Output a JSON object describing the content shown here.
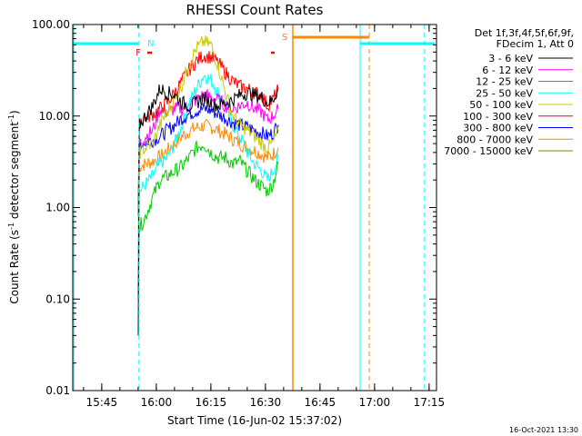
{
  "chart_data": {
    "type": "line",
    "title": "RHESSI Count Rates",
    "xlabel": "Start Time (16-Jun-02 15:37:02)",
    "ylabel_main": "Count Rate (s",
    "ylabel_exp": "-1",
    "ylabel_tail": " detector segment",
    "ylabel_exp2": "-1",
    "ylabel_close": ")",
    "yscale": "log",
    "ylim": [
      0.01,
      100
    ],
    "xlim_minutes": [
      0,
      100
    ],
    "x_ticks": [
      {
        "label": "15:45",
        "minute": 7.97
      },
      {
        "label": "16:00",
        "minute": 22.97
      },
      {
        "label": "16:15",
        "minute": 37.97
      },
      {
        "label": "16:30",
        "minute": 52.97
      },
      {
        "label": "16:45",
        "minute": 67.97
      },
      {
        "label": "17:00",
        "minute": 82.97
      },
      {
        "label": "17:15",
        "minute": 97.97
      }
    ],
    "y_ticks": [
      {
        "label": "100.00",
        "value": 100
      },
      {
        "label": "10.00",
        "value": 10
      },
      {
        "label": "1.00",
        "value": 1
      },
      {
        "label": "0.10",
        "value": 0.1
      },
      {
        "label": "0.01",
        "value": 0.01
      }
    ],
    "legend_header": [
      "Det 1f,3f,4f,5f,6f,9f,",
      "FDecim 1, Att 0"
    ],
    "series": [
      {
        "name": "3 - 6 keV",
        "color": "#000000",
        "points": [
          [
            18,
            0.04
          ],
          [
            18.3,
            8
          ],
          [
            20,
            10
          ],
          [
            22,
            13
          ],
          [
            24,
            20
          ],
          [
            26,
            18
          ],
          [
            28,
            17
          ],
          [
            30,
            14
          ],
          [
            32,
            13
          ],
          [
            34,
            14
          ],
          [
            36,
            16
          ],
          [
            38,
            14
          ],
          [
            40,
            13
          ],
          [
            42,
            14
          ],
          [
            44,
            15
          ],
          [
            46,
            17
          ],
          [
            48,
            18
          ],
          [
            50,
            17
          ],
          [
            52,
            16
          ],
          [
            53.5,
            14
          ],
          [
            55,
            15
          ],
          [
            56.5,
            20
          ]
        ]
      },
      {
        "name": "6 - 12 keV",
        "color": "#ff00ff",
        "points": [
          [
            18,
            0.1
          ],
          [
            18.3,
            5
          ],
          [
            20,
            6
          ],
          [
            22,
            7
          ],
          [
            24,
            12
          ],
          [
            26,
            11
          ],
          [
            28,
            12
          ],
          [
            30,
            12
          ],
          [
            32,
            13
          ],
          [
            34,
            15
          ],
          [
            36,
            17
          ],
          [
            38,
            16
          ],
          [
            40,
            15
          ],
          [
            42,
            13
          ],
          [
            44,
            12
          ],
          [
            46,
            13
          ],
          [
            48,
            14
          ],
          [
            50,
            12
          ],
          [
            52,
            11
          ],
          [
            53.5,
            9
          ],
          [
            55,
            10
          ],
          [
            56.5,
            12
          ]
        ]
      },
      {
        "name": "12 - 25 keV",
        "color": "#00cc00",
        "points": [
          [
            18,
            0.1
          ],
          [
            18.3,
            0.6
          ],
          [
            20,
            0.8
          ],
          [
            22,
            1.3
          ],
          [
            24,
            2
          ],
          [
            26,
            2.2
          ],
          [
            28,
            2.5
          ],
          [
            30,
            2.8
          ],
          [
            32,
            3.5
          ],
          [
            34,
            4.5
          ],
          [
            36,
            5
          ],
          [
            38,
            4
          ],
          [
            40,
            3.5
          ],
          [
            42,
            3.5
          ],
          [
            44,
            3
          ],
          [
            46,
            3.2
          ],
          [
            48,
            2.5
          ],
          [
            50,
            2
          ],
          [
            52,
            1.7
          ],
          [
            53.5,
            1.5
          ],
          [
            55,
            1.8
          ],
          [
            56.5,
            3
          ]
        ]
      },
      {
        "name": "25 - 50 keV",
        "color": "#00ffff",
        "points": [
          [
            18,
            0.1
          ],
          [
            18.3,
            1.5
          ],
          [
            20,
            1.8
          ],
          [
            22,
            2.2
          ],
          [
            24,
            3
          ],
          [
            26,
            3.5
          ],
          [
            28,
            5
          ],
          [
            30,
            8
          ],
          [
            32,
            14
          ],
          [
            34,
            20
          ],
          [
            36,
            28
          ],
          [
            38,
            25
          ],
          [
            40,
            18
          ],
          [
            42,
            13
          ],
          [
            44,
            8
          ],
          [
            46,
            6
          ],
          [
            48,
            4
          ],
          [
            50,
            3
          ],
          [
            52,
            2.5
          ],
          [
            53.5,
            2
          ],
          [
            55,
            2.5
          ],
          [
            56.5,
            3.5
          ]
        ]
      },
      {
        "name": "50 - 100 keV",
        "color": "#cccc00",
        "points": [
          [
            18,
            0.5
          ],
          [
            18.3,
            4
          ],
          [
            20,
            4.5
          ],
          [
            22,
            5
          ],
          [
            24,
            8
          ],
          [
            26,
            11
          ],
          [
            28,
            15
          ],
          [
            30,
            22
          ],
          [
            32,
            38
          ],
          [
            34,
            55
          ],
          [
            36,
            65
          ],
          [
            38,
            60
          ],
          [
            40,
            35
          ],
          [
            42,
            18
          ],
          [
            44,
            10
          ],
          [
            46,
            8
          ],
          [
            48,
            7
          ],
          [
            50,
            6
          ],
          [
            52,
            5
          ],
          [
            53.5,
            4.5
          ],
          [
            55,
            5
          ],
          [
            56.5,
            7
          ]
        ]
      },
      {
        "name": "100 - 300 keV",
        "color": "#ff0000",
        "points": [
          [
            18,
            1
          ],
          [
            18.3,
            9
          ],
          [
            20,
            9.5
          ],
          [
            22,
            10.5
          ],
          [
            24,
            12
          ],
          [
            26,
            14
          ],
          [
            28,
            18
          ],
          [
            30,
            24
          ],
          [
            32,
            32
          ],
          [
            34,
            40
          ],
          [
            36,
            46
          ],
          [
            38,
            44
          ],
          [
            40,
            38
          ],
          [
            42,
            30
          ],
          [
            44,
            24
          ],
          [
            46,
            21
          ],
          [
            48,
            20
          ],
          [
            50,
            18
          ],
          [
            52,
            17
          ],
          [
            53.5,
            13
          ],
          [
            55,
            15
          ],
          [
            56.5,
            20
          ]
        ]
      },
      {
        "name": "300 - 800 keV",
        "color": "#0000ff",
        "points": [
          [
            18,
            0.8
          ],
          [
            18.3,
            5
          ],
          [
            20,
            5.2
          ],
          [
            22,
            5.5
          ],
          [
            24,
            6
          ],
          [
            26,
            7
          ],
          [
            28,
            8
          ],
          [
            30,
            9.5
          ],
          [
            32,
            10.5
          ],
          [
            34,
            11.5
          ],
          [
            36,
            12
          ],
          [
            38,
            11.5
          ],
          [
            40,
            10.5
          ],
          [
            42,
            9.5
          ],
          [
            44,
            8.5
          ],
          [
            46,
            8
          ],
          [
            48,
            7.5
          ],
          [
            50,
            7
          ],
          [
            52,
            6.5
          ],
          [
            53.5,
            6
          ],
          [
            55,
            6.5
          ],
          [
            56.5,
            8
          ]
        ]
      },
      {
        "name": "800 - 7000 keV",
        "color": "#ff8800",
        "points": [
          [
            18,
            0.3
          ],
          [
            18.3,
            2.8
          ],
          [
            20,
            3
          ],
          [
            22,
            3.2
          ],
          [
            24,
            3.6
          ],
          [
            26,
            4.2
          ],
          [
            28,
            5
          ],
          [
            30,
            6
          ],
          [
            32,
            6.8
          ],
          [
            34,
            7.5
          ],
          [
            36,
            7.8
          ],
          [
            38,
            7.6
          ],
          [
            40,
            7
          ],
          [
            42,
            6.3
          ],
          [
            44,
            5.6
          ],
          [
            46,
            5
          ],
          [
            48,
            4.5
          ],
          [
            50,
            4.2
          ],
          [
            52,
            3.8
          ],
          [
            53.5,
            3.5
          ],
          [
            55,
            3.8
          ],
          [
            56.5,
            4.5
          ]
        ]
      },
      {
        "name": "7000 - 15000 keV",
        "color": "#808000",
        "points": []
      }
    ],
    "flags": [
      {
        "label": "N",
        "color": "#00ffff"
      },
      {
        "label": "F",
        "color": "#ff0000"
      },
      {
        "label": "S",
        "color": "#ff8800"
      }
    ]
  },
  "footer": {
    "timestamp": "16-Oct-2021 13:30"
  }
}
